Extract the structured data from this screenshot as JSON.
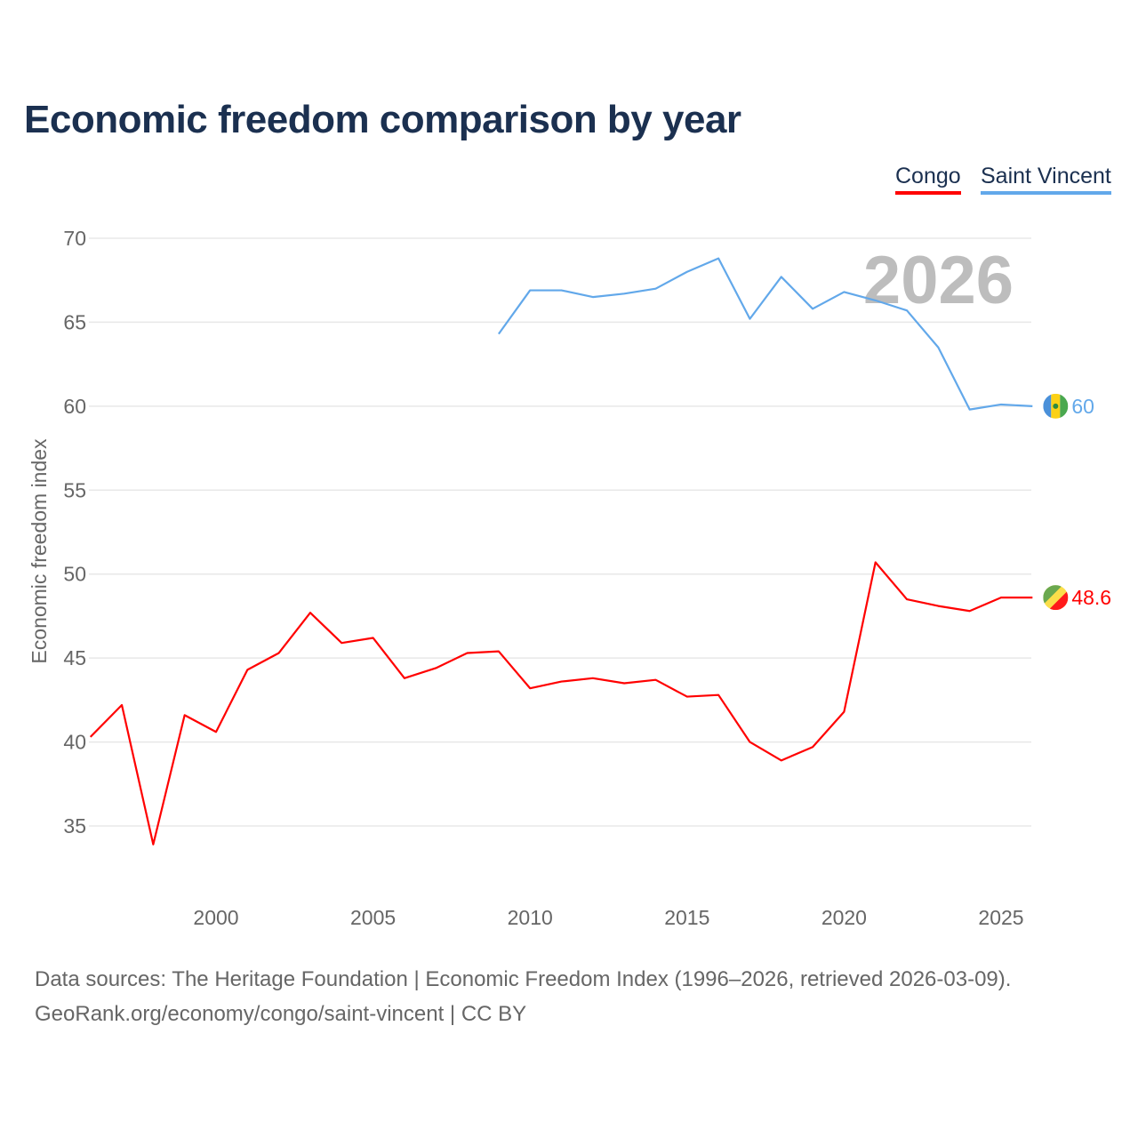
{
  "chart_data": {
    "type": "line",
    "title": "Economic freedom comparison by year",
    "xlabel": "",
    "ylabel": "Economic freedom index",
    "xlim": [
      1996,
      2026
    ],
    "ylim": [
      31,
      71
    ],
    "yticks": [
      35,
      40,
      45,
      50,
      55,
      60,
      65,
      70
    ],
    "xticks": [
      2000,
      2005,
      2010,
      2015,
      2020,
      2025
    ],
    "grid": true,
    "legend_position": "top-right",
    "watermark_year": "2026",
    "series": [
      {
        "name": "Congo",
        "color": "#ff0000",
        "end_label": "48.6",
        "x": [
          1996,
          1997,
          1998,
          1999,
          2000,
          2001,
          2002,
          2003,
          2004,
          2005,
          2006,
          2007,
          2008,
          2009,
          2010,
          2011,
          2012,
          2013,
          2014,
          2015,
          2016,
          2017,
          2018,
          2019,
          2020,
          2021,
          2022,
          2023,
          2024,
          2025,
          2026
        ],
        "values": [
          40.3,
          42.2,
          33.9,
          41.6,
          40.6,
          44.3,
          45.3,
          47.7,
          45.9,
          46.2,
          43.8,
          44.4,
          45.3,
          45.4,
          43.2,
          43.6,
          43.8,
          43.5,
          43.7,
          42.7,
          42.8,
          40.0,
          38.9,
          39.7,
          41.8,
          50.7,
          48.5,
          48.1,
          47.8,
          48.6,
          48.6
        ]
      },
      {
        "name": "Saint Vincent",
        "color": "#62a8ea",
        "end_label": "60",
        "x": [
          2009,
          2010,
          2011,
          2012,
          2013,
          2014,
          2015,
          2016,
          2017,
          2018,
          2019,
          2020,
          2021,
          2022,
          2023,
          2024,
          2025,
          2026
        ],
        "values": [
          64.3,
          66.9,
          66.9,
          66.5,
          66.7,
          67.0,
          68.0,
          68.8,
          65.2,
          67.7,
          65.8,
          66.8,
          66.3,
          65.7,
          63.5,
          59.8,
          60.1,
          60.0
        ]
      }
    ]
  },
  "footer": {
    "line1": "Data sources: The Heritage Foundation | Economic Freedom Index (1996–2026, retrieved 2026-03-09).",
    "line2": "GeoRank.org/economy/congo/saint-vincent | CC BY"
  }
}
